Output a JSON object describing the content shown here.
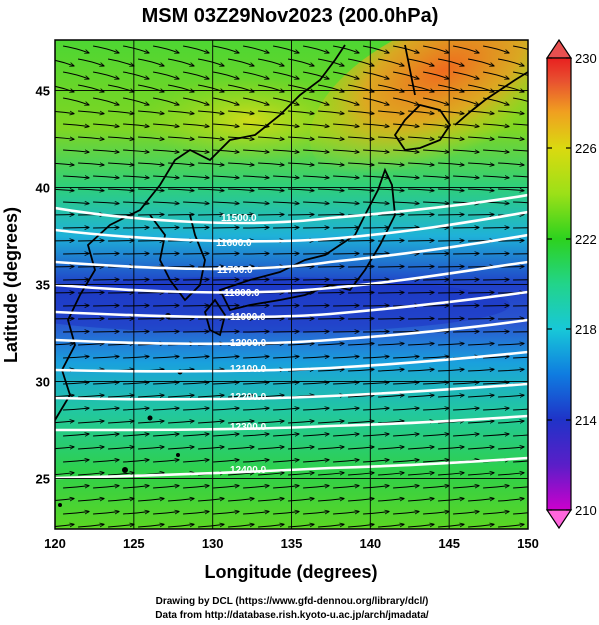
{
  "title": "MSM 03Z29Nov2023 (200.0hPa)",
  "axes": {
    "xlabel": "Longitude (degrees)",
    "ylabel": "Latitude  (degrees)",
    "xlim": [
      120,
      150
    ],
    "ylim": [
      22.4,
      47.6
    ],
    "xticks": [
      "120",
      "125",
      "130",
      "135",
      "140",
      "145",
      "150"
    ],
    "yticks": [
      "25",
      "30",
      "35",
      "40",
      "45"
    ]
  },
  "colorbar": {
    "range": [
      210,
      230
    ],
    "labels": [
      "230",
      "226",
      "222",
      "218",
      "214",
      "210"
    ],
    "colors": [
      "#cc00cc",
      "#5a1ec8",
      "#1f33c8",
      "#0f7ce0",
      "#18c8d8",
      "#22d48a",
      "#2dd21e",
      "#9ce018",
      "#dada10",
      "#f0a020",
      "#e85030",
      "#e82020"
    ]
  },
  "contours": {
    "labels": [
      "11500.0",
      "11600.0",
      "11700.0",
      "11800.0",
      "11900.0",
      "12000.0",
      "12100.0",
      "12200.0",
      "12300.0",
      "12400.0"
    ]
  },
  "footer": {
    "line1": "Drawing by DCL (https://www.gfd-dennou.org/library/dcl/)",
    "line2": "Data from http://database.rish.kyoto-u.ac.jp/arch/jmadata/"
  }
}
